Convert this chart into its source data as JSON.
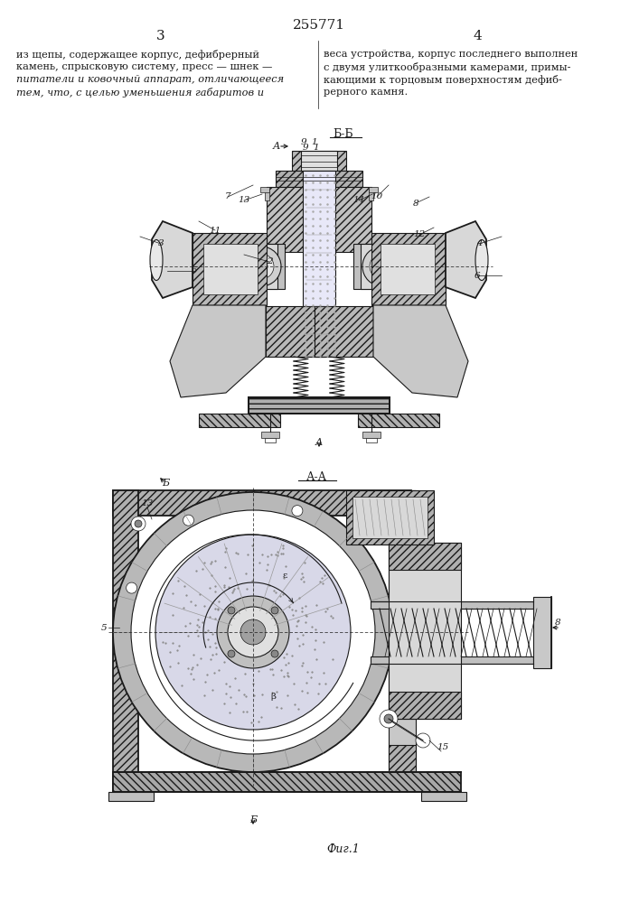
{
  "patent_number": "255771",
  "page_left": "3",
  "page_right": "4",
  "text_left_lines": [
    "из щепы, содержащее корпус, дефибрерный",
    "камень, спрысковую систему, пресс — шнек —",
    "питатели и ковочный аппарат, отличающееся",
    "тем, что, с целью уменьшения габаритов и"
  ],
  "text_right_lines": [
    "веса устройства, корпус последнего выполнен",
    "с двумя улиткообразными камерами, примы-",
    "кающими к торцовым поверхностям дефиб-",
    "рерного камня."
  ],
  "fig_label": "Фиг.1",
  "background": "#ffffff",
  "line_color": "#1a1a1a",
  "gray_fill": "#c8c8c8",
  "light_fill": "#e8e8e8",
  "white_fill": "#ffffff",
  "hatch_fill": "#d0d0d0"
}
